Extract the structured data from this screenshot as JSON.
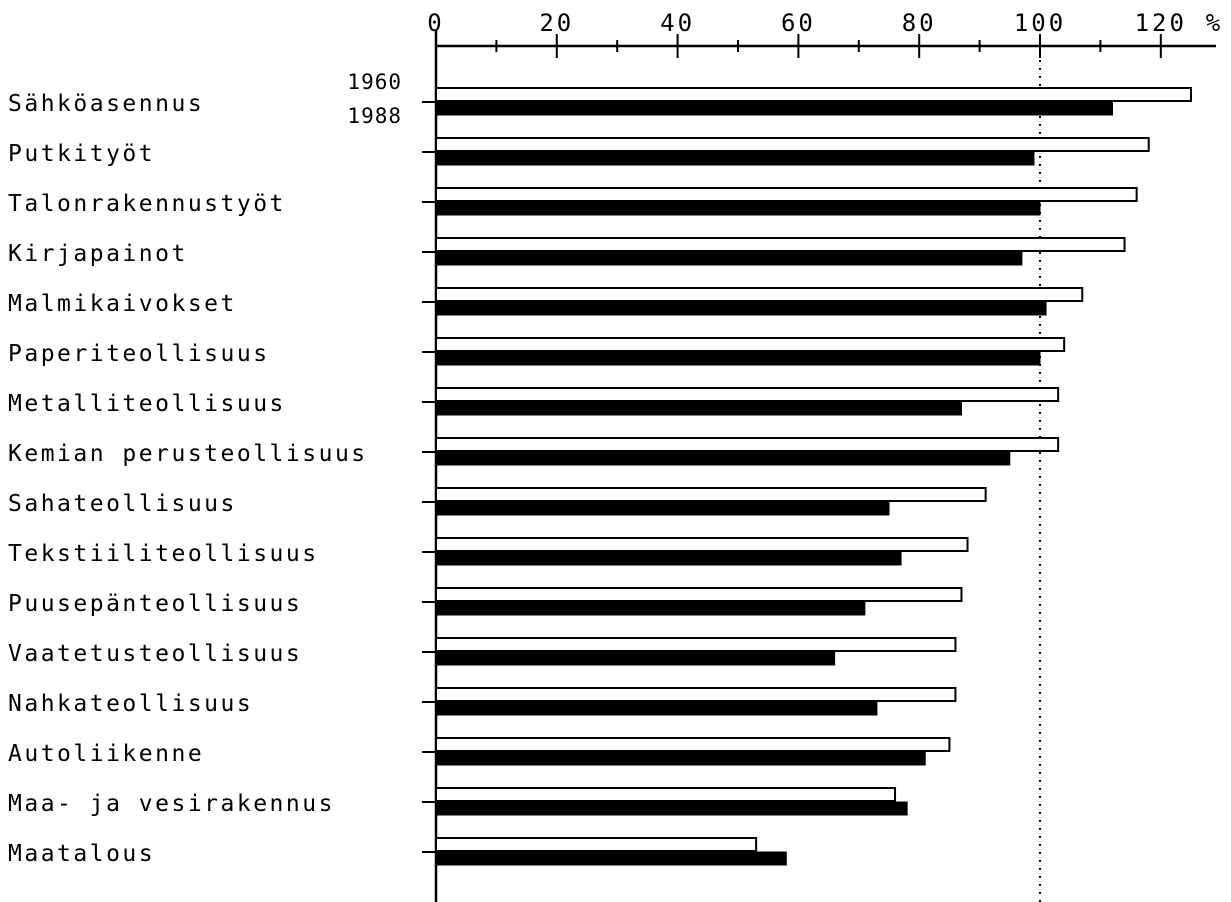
{
  "chart_data": {
    "type": "bar",
    "orientation": "horizontal",
    "categories": [
      "Sähköasennus",
      "Putkityöt",
      "Talonrakennustyöt",
      "Kirjapainot",
      "Malmikaivokset",
      "Paperiteollisuus",
      "Metalliteollisuus",
      "Kemian perusteollisuus",
      "Sahateollisuus",
      "Tekstiiliteollisuus",
      "Puusepänteollisuus",
      "Vaatetusteollisuus",
      "Nahkateollisuus",
      "Autoliikenne",
      "Maa- ja vesirakennus",
      "Maatalous"
    ],
    "series": [
      {
        "name": "1960",
        "color": "#ffffff",
        "values": [
          125,
          118,
          116,
          114,
          107,
          104,
          103,
          103,
          91,
          88,
          87,
          86,
          86,
          85,
          76,
          53
        ]
      },
      {
        "name": "1988",
        "color": "#000000",
        "values": [
          112,
          99,
          100,
          97,
          101,
          100,
          87,
          95,
          75,
          77,
          71,
          66,
          73,
          81,
          78,
          58
        ]
      }
    ],
    "x_ticks": [
      "0",
      "20",
      "40",
      "60",
      "80",
      "100",
      "120"
    ],
    "x_unit": "%",
    "xlim": [
      0,
      131
    ],
    "reference_line": 100,
    "xlabel": "",
    "ylabel": "",
    "title": ""
  }
}
